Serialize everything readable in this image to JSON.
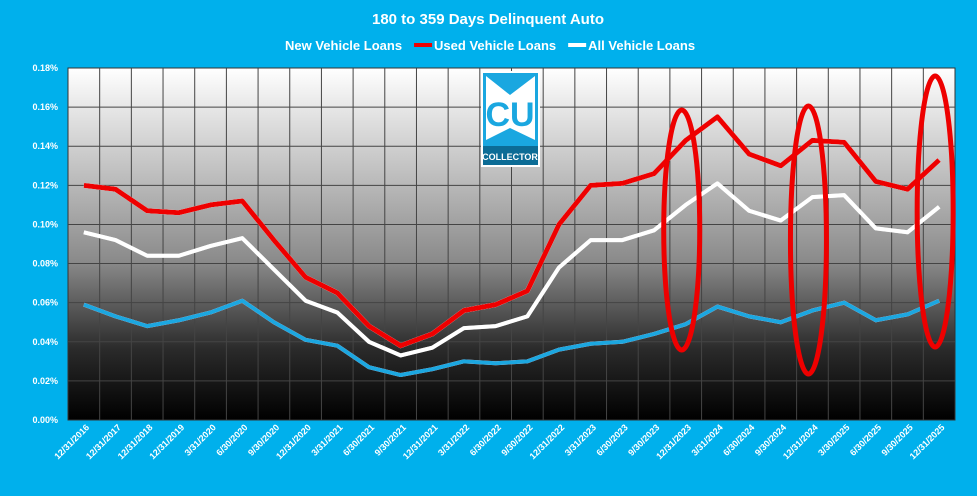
{
  "chart_data": {
    "type": "line",
    "title": "180 to 359 Days Delinquent Auto",
    "legend_position": "top",
    "grid": true,
    "ylim": [
      0,
      0.18
    ],
    "y_ticks": [
      "0.00%",
      "0.02%",
      "0.04%",
      "0.06%",
      "0.08%",
      "0.10%",
      "0.12%",
      "0.14%",
      "0.16%",
      "0.18%"
    ],
    "y_unit": "%",
    "categories": [
      "12/31/2016",
      "12/31/2017",
      "12/31/2018",
      "12/31/2019",
      "3/31/2020",
      "6/30/2020",
      "9/30/2020",
      "12/31/2020",
      "3/31/2021",
      "6/30/2021",
      "9/30/2021",
      "12/31/2021",
      "3/31/2022",
      "6/30/2022",
      "9/30/2022",
      "12/31/2022",
      "3/31/2023",
      "6/30/2023",
      "9/30/2023",
      "12/31/2023",
      "3/31/2024",
      "6/30/2024",
      "9/30/2024",
      "12/31/2024",
      "3/30/2025",
      "6/30/2025",
      "9/30/2025",
      "12/31/2025"
    ],
    "series": [
      {
        "name": "New Vehicle Loans",
        "color": "#1aa7e0",
        "values": [
          0.059,
          0.053,
          0.048,
          0.051,
          0.055,
          0.061,
          0.05,
          0.041,
          0.038,
          0.027,
          0.023,
          0.026,
          0.03,
          0.029,
          0.03,
          0.036,
          0.039,
          0.04,
          0.044,
          0.049,
          0.058,
          0.053,
          0.05,
          0.056,
          0.06,
          0.051,
          0.054,
          0.061
        ]
      },
      {
        "name": "Used Vehicle Loans",
        "color": "#ee0000",
        "values": [
          0.12,
          0.118,
          0.107,
          0.106,
          0.11,
          0.112,
          0.092,
          0.073,
          0.065,
          0.048,
          0.038,
          0.044,
          0.056,
          0.059,
          0.066,
          0.1,
          0.12,
          0.121,
          0.126,
          0.143,
          0.155,
          0.136,
          0.13,
          0.143,
          0.142,
          0.122,
          0.118,
          0.133
        ]
      },
      {
        "name": "All Vehicle Loans",
        "color": "#ffffff",
        "values": [
          0.096,
          0.092,
          0.084,
          0.084,
          0.089,
          0.093,
          0.077,
          0.061,
          0.055,
          0.04,
          0.033,
          0.037,
          0.047,
          0.048,
          0.053,
          0.078,
          0.092,
          0.092,
          0.097,
          0.11,
          0.121,
          0.107,
          0.102,
          0.114,
          0.115,
          0.098,
          0.096,
          0.109
        ]
      }
    ],
    "highlighted_categories": [
      "12/31/2023",
      "12/31/2024",
      "12/31/2025"
    ],
    "highlight_color": "#ee0000"
  },
  "logo": {
    "text": "CU",
    "subtext": "COLLECTOR"
  },
  "colors": {
    "background": "#00b0ec"
  }
}
